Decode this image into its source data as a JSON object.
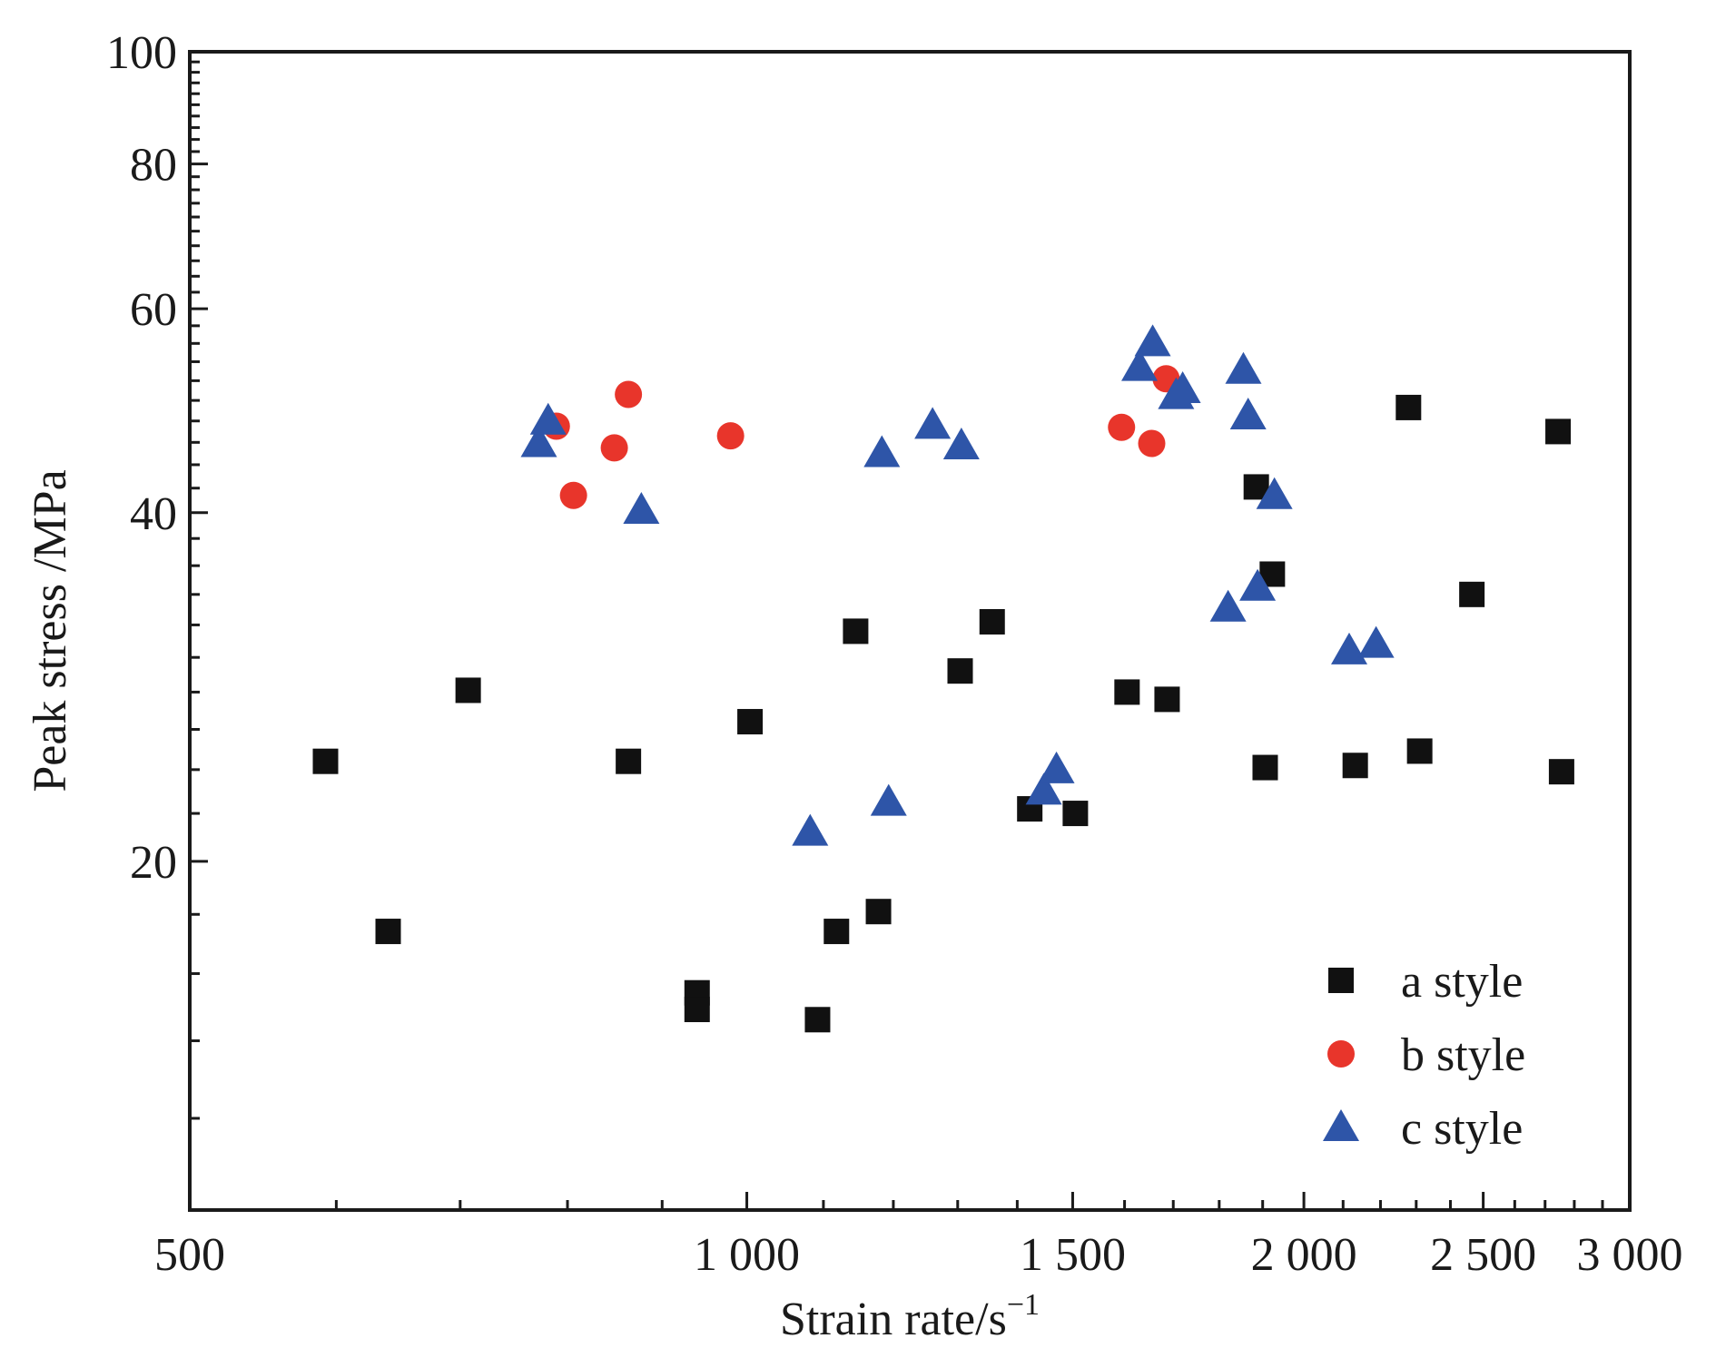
{
  "chart_data": {
    "type": "scatter",
    "xlabel": "Strain rate/s",
    "xlabel_sup": "−1",
    "ylabel": "Peak stress /MPa",
    "x_scale": "log",
    "y_scale": "log",
    "xlim": [
      500,
      3000
    ],
    "ylim": [
      10,
      100
    ],
    "x_ticks": [
      500,
      1000,
      1500,
      2000,
      2500,
      3000
    ],
    "x_tick_labels": [
      "500",
      "1 000",
      "1 500",
      "2 000",
      "2 500",
      "3 000"
    ],
    "y_ticks": [
      20,
      40,
      60,
      80,
      100
    ],
    "y_tick_labels": [
      "20",
      "40",
      "60",
      "80",
      "100"
    ],
    "grid": false,
    "legend_position": "bottom-right",
    "series": [
      {
        "name": "a style",
        "marker": "square",
        "color": "#111111",
        "points": [
          [
            592,
            24.4
          ],
          [
            640,
            17.4
          ],
          [
            707,
            28.1
          ],
          [
            863,
            24.4
          ],
          [
            940,
            15.4
          ],
          [
            940,
            14.9
          ],
          [
            1004,
            26.4
          ],
          [
            1092,
            14.6
          ],
          [
            1118,
            17.4
          ],
          [
            1145,
            31.6
          ],
          [
            1178,
            18.1
          ],
          [
            1304,
            29.2
          ],
          [
            1357,
            32.2
          ],
          [
            1422,
            22.2
          ],
          [
            1505,
            22.0
          ],
          [
            1605,
            28.0
          ],
          [
            1687,
            27.6
          ],
          [
            1885,
            42.1
          ],
          [
            1906,
            24.1
          ],
          [
            1923,
            35.4
          ],
          [
            2132,
            24.2
          ],
          [
            2278,
            49.3
          ],
          [
            2310,
            24.9
          ],
          [
            2465,
            34.0
          ],
          [
            2744,
            47.0
          ],
          [
            2756,
            23.9
          ]
        ]
      },
      {
        "name": "b style",
        "color": "#e8352b",
        "marker": "circle",
        "points": [
          [
            789,
            47.5
          ],
          [
            806,
            41.4
          ],
          [
            848,
            45.5
          ],
          [
            863,
            50.6
          ],
          [
            980,
            46.6
          ],
          [
            1594,
            47.4
          ],
          [
            1655,
            45.9
          ],
          [
            1685,
            52.2
          ]
        ]
      },
      {
        "name": "c style",
        "marker": "triangle",
        "color": "#2e55a8",
        "points": [
          [
            772,
            45.9
          ],
          [
            781,
            48.0
          ],
          [
            877,
            40.2
          ],
          [
            1082,
            21.2
          ],
          [
            1183,
            45.0
          ],
          [
            1193,
            22.5
          ],
          [
            1260,
            47.6
          ],
          [
            1306,
            45.7
          ],
          [
            1447,
            23.0
          ],
          [
            1470,
            24.0
          ],
          [
            1630,
            53.4
          ],
          [
            1657,
            56.1
          ],
          [
            1706,
            50.5
          ],
          [
            1720,
            51.1
          ],
          [
            1820,
            33.1
          ],
          [
            1855,
            53.1
          ],
          [
            1866,
            48.5
          ],
          [
            1888,
            34.5
          ],
          [
            1928,
            41.4
          ],
          [
            2116,
            30.4
          ],
          [
            2188,
            30.8
          ]
        ]
      }
    ]
  }
}
